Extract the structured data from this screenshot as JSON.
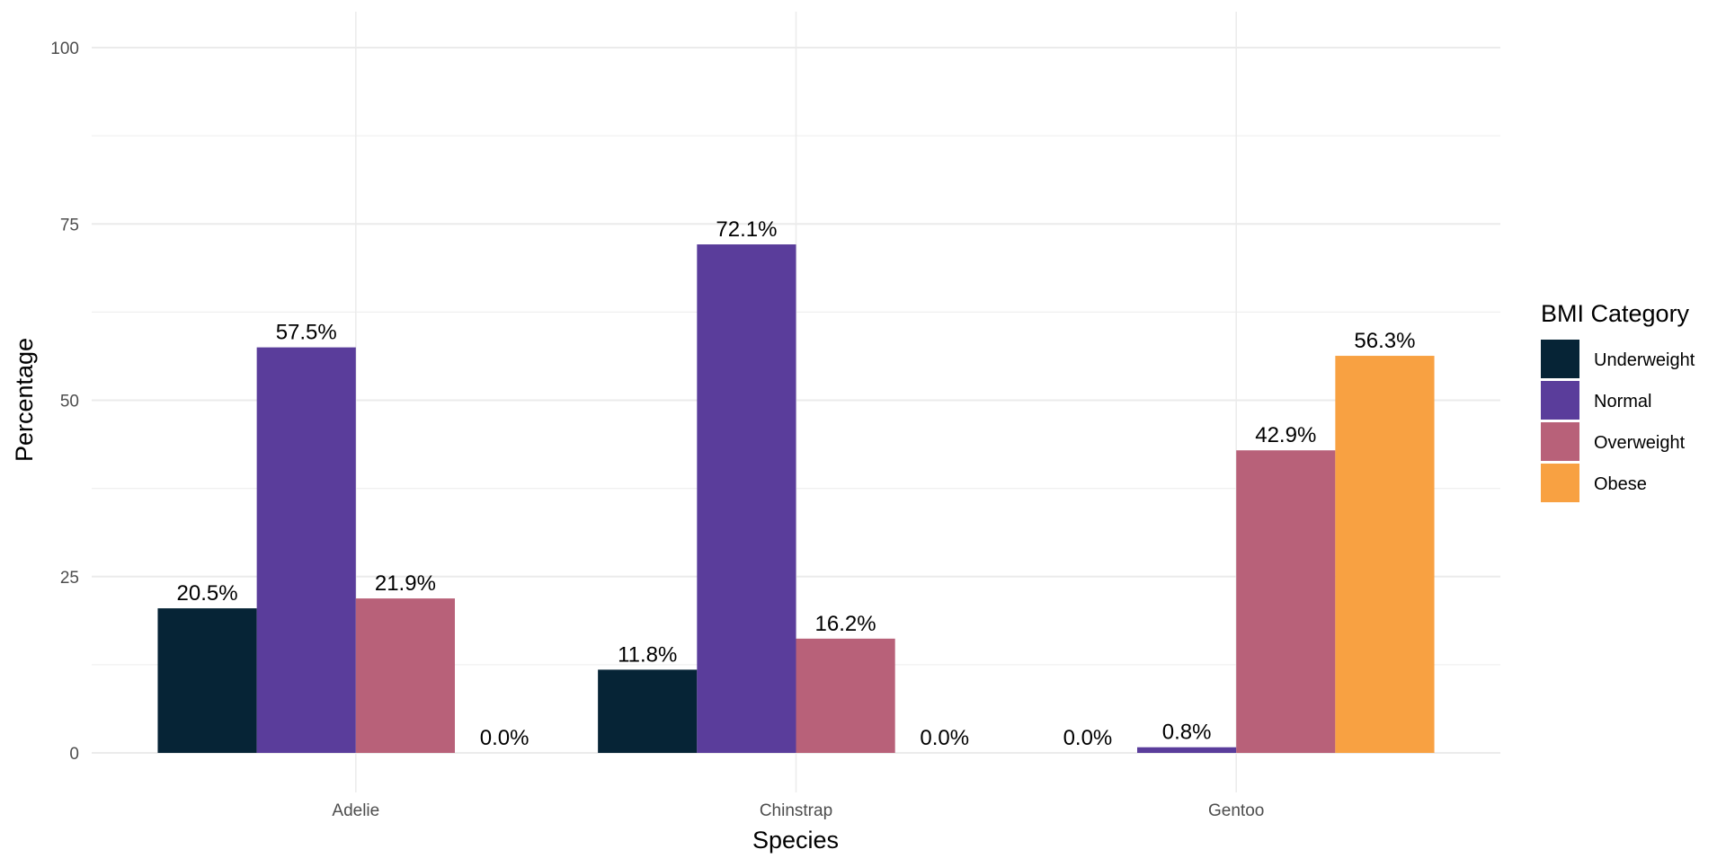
{
  "chart_data": {
    "type": "bar",
    "title": "",
    "xlabel": "Species",
    "ylabel": "Percentage",
    "ylim": [
      0,
      100
    ],
    "yticks": [
      0,
      25,
      50,
      75,
      100
    ],
    "grid": true,
    "categories": [
      "Adelie",
      "Chinstrap",
      "Gentoo"
    ],
    "legend": {
      "title": "BMI Category",
      "placement": "right"
    },
    "series": [
      {
        "name": "Underweight",
        "color": "#062436",
        "values": [
          20.5,
          11.8,
          0.0
        ],
        "labels": [
          "20.5%",
          "11.8%",
          "0.0%"
        ]
      },
      {
        "name": "Normal",
        "color": "#5A3D9B",
        "values": [
          57.5,
          72.1,
          0.8
        ],
        "labels": [
          "57.5%",
          "72.1%",
          "0.8%"
        ]
      },
      {
        "name": "Overweight",
        "color": "#B86179",
        "values": [
          21.9,
          16.2,
          42.9
        ],
        "labels": [
          "21.9%",
          "16.2%",
          "42.9%"
        ]
      },
      {
        "name": "Obese",
        "color": "#F8A142",
        "values": [
          0.0,
          0.0,
          56.3
        ],
        "labels": [
          "0.0%",
          "0.0%",
          "56.3%"
        ]
      }
    ]
  }
}
